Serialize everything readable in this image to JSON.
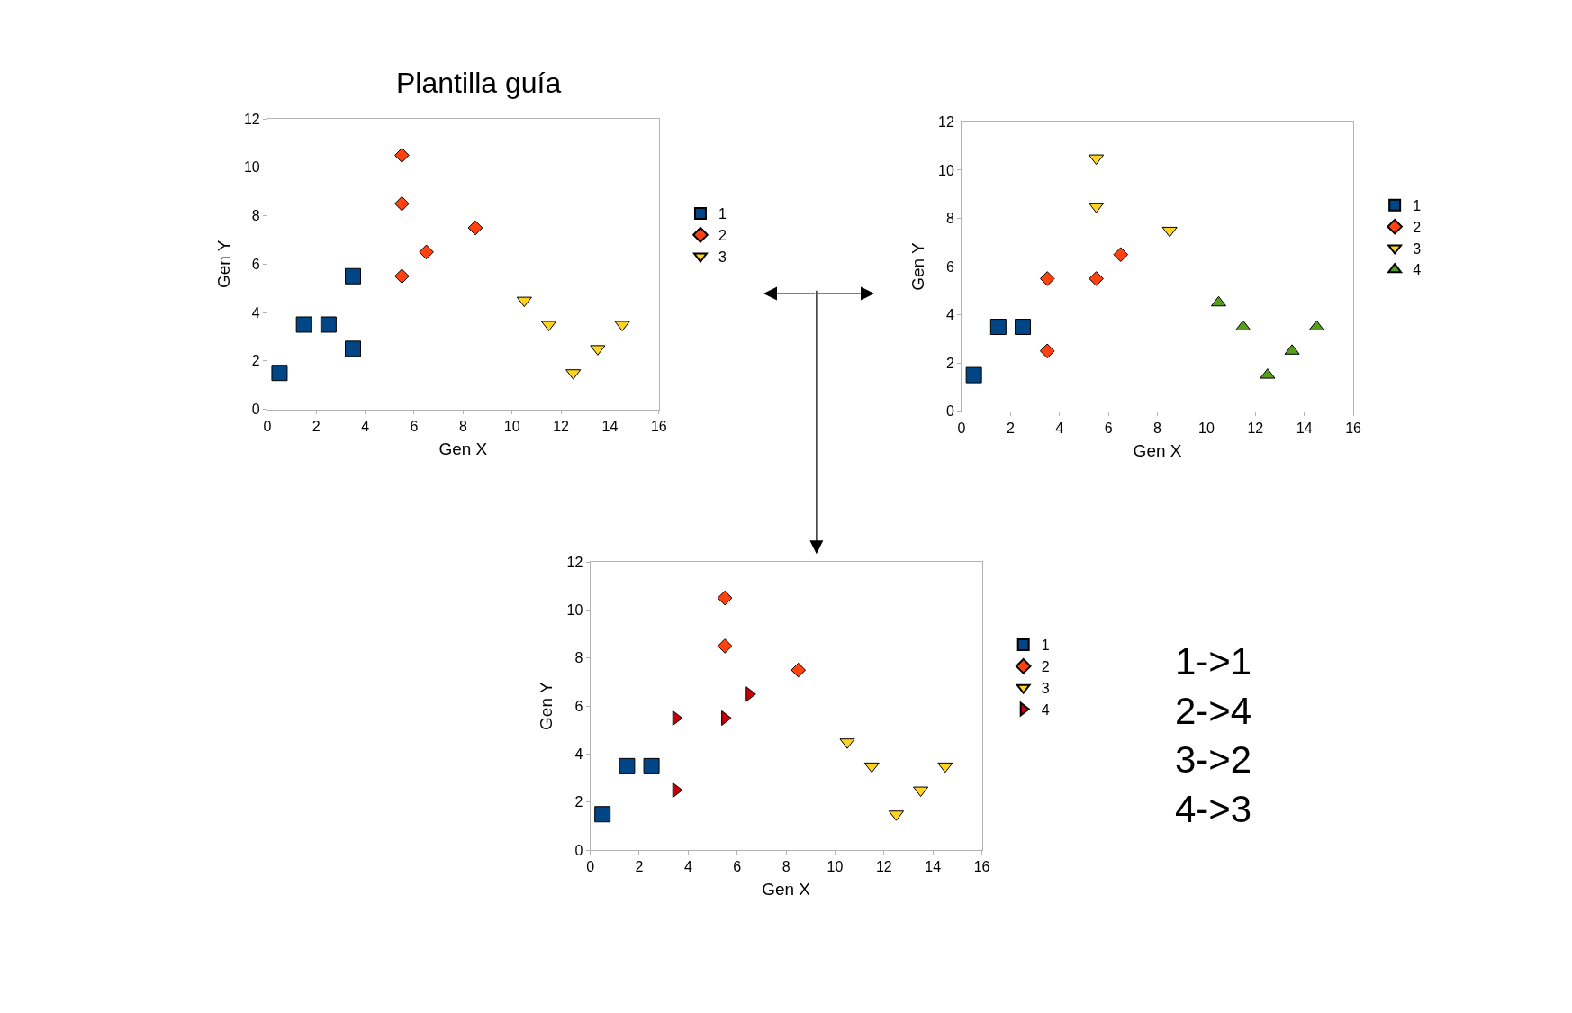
{
  "chart_data": [
    {
      "type": "scatter",
      "title": "Plantilla guía",
      "xlabel": "Gen X",
      "ylabel": "Gen Y",
      "xlim": [
        0,
        16
      ],
      "xticks": [
        0,
        2,
        4,
        6,
        8,
        10,
        12,
        14,
        16
      ],
      "ylim": [
        0,
        12
      ],
      "yticks": [
        0,
        2,
        4,
        6,
        8,
        10,
        12
      ],
      "legend": "right",
      "series": [
        {
          "name": "1",
          "color": "#004586",
          "marker": "square",
          "x": [
            0.5,
            1.5,
            2.5,
            3.5,
            3.5
          ],
          "values": [
            1.5,
            3.5,
            3.5,
            5.5,
            2.5
          ]
        },
        {
          "name": "2",
          "color": "#ff420e",
          "marker": "diamond",
          "x": [
            5.5,
            5.5,
            6.5,
            8.5,
            5.5
          ],
          "values": [
            10.5,
            8.5,
            6.5,
            7.5,
            5.5
          ]
        },
        {
          "name": "3",
          "color": "#ffd320",
          "marker": "triangle-down",
          "x": [
            10.5,
            11.5,
            12.5,
            13.5,
            14.5
          ],
          "values": [
            4.5,
            3.5,
            1.5,
            2.5,
            3.5
          ]
        }
      ]
    },
    {
      "type": "scatter",
      "xlabel": "Gen X",
      "ylabel": "Gen Y",
      "xlim": [
        0,
        16
      ],
      "xticks": [
        0,
        2,
        4,
        6,
        8,
        10,
        12,
        14,
        16
      ],
      "ylim": [
        0,
        12
      ],
      "yticks": [
        0,
        2,
        4,
        6,
        8,
        10,
        12
      ],
      "legend": "right",
      "series": [
        {
          "name": "1",
          "color": "#004586",
          "marker": "square",
          "x": [
            0.5,
            1.5,
            2.5
          ],
          "values": [
            1.5,
            3.5,
            3.5
          ]
        },
        {
          "name": "2",
          "color": "#ff420e",
          "marker": "diamond",
          "x": [
            3.5,
            3.5,
            5.5,
            6.5
          ],
          "values": [
            5.5,
            2.5,
            5.5,
            6.5
          ]
        },
        {
          "name": "3",
          "color": "#ffd320",
          "marker": "triangle-down",
          "x": [
            5.5,
            5.5,
            8.5
          ],
          "values": [
            10.5,
            8.5,
            7.5
          ]
        },
        {
          "name": "4",
          "color": "#579d1c",
          "marker": "triangle",
          "x": [
            10.5,
            11.5,
            12.5,
            13.5,
            14.5
          ],
          "values": [
            4.5,
            3.5,
            1.5,
            2.5,
            3.5
          ]
        }
      ]
    },
    {
      "type": "scatter",
      "xlabel": "Gen X",
      "ylabel": "Gen Y",
      "xlim": [
        0,
        16
      ],
      "xticks": [
        0,
        2,
        4,
        6,
        8,
        10,
        12,
        14,
        16
      ],
      "ylim": [
        0,
        12
      ],
      "yticks": [
        0,
        2,
        4,
        6,
        8,
        10,
        12
      ],
      "legend": "right",
      "annotations": [
        "1->1\n2->4\n3->2\n4->3"
      ],
      "series": [
        {
          "name": "1",
          "color": "#004586",
          "marker": "square",
          "x": [
            0.5,
            1.5,
            2.5
          ],
          "values": [
            1.5,
            3.5,
            3.5
          ]
        },
        {
          "name": "2",
          "color": "#ff420e",
          "marker": "diamond",
          "x": [
            5.5,
            5.5,
            8.5
          ],
          "values": [
            10.5,
            8.5,
            7.5
          ]
        },
        {
          "name": "3",
          "color": "#ffd320",
          "marker": "triangle-down",
          "x": [
            10.5,
            11.5,
            12.5,
            13.5,
            14.5
          ],
          "values": [
            4.5,
            3.5,
            1.5,
            2.5,
            3.5
          ]
        },
        {
          "name": "4",
          "color": "#c5000b",
          "marker": "triangle-right",
          "x": [
            3.5,
            3.5,
            5.5,
            6.5
          ],
          "values": [
            5.5,
            2.5,
            5.5,
            6.5
          ]
        }
      ]
    }
  ]
}
